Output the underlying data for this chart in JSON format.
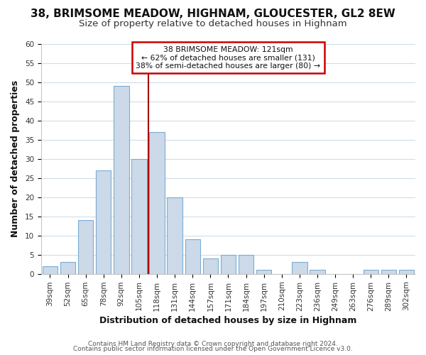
{
  "title": "38, BRIMSOME MEADOW, HIGHNAM, GLOUCESTER, GL2 8EW",
  "subtitle": "Size of property relative to detached houses in Highnam",
  "xlabel": "Distribution of detached houses by size in Highnam",
  "ylabel": "Number of detached properties",
  "bin_labels": [
    "39sqm",
    "52sqm",
    "65sqm",
    "78sqm",
    "92sqm",
    "105sqm",
    "118sqm",
    "131sqm",
    "144sqm",
    "157sqm",
    "171sqm",
    "184sqm",
    "197sqm",
    "210sqm",
    "223sqm",
    "236sqm",
    "249sqm",
    "263sqm",
    "276sqm",
    "289sqm",
    "302sqm"
  ],
  "bar_heights": [
    2,
    3,
    14,
    27,
    49,
    30,
    37,
    20,
    9,
    4,
    5,
    5,
    1,
    0,
    3,
    1,
    0,
    0,
    1,
    1,
    1
  ],
  "bar_color": "#ccd9e8",
  "bar_edge_color": "#7aadd4",
  "highlight_line_color": "#aa0000",
  "annotation_title": "38 BRIMSOME MEADOW: 121sqm",
  "annotation_line1": "← 62% of detached houses are smaller (131)",
  "annotation_line2": "38% of semi-detached houses are larger (80) →",
  "annotation_box_color": "#ffffff",
  "annotation_box_edge": "#cc0000",
  "ylim": [
    0,
    60
  ],
  "yticks": [
    0,
    5,
    10,
    15,
    20,
    25,
    30,
    35,
    40,
    45,
    50,
    55,
    60
  ],
  "footer1": "Contains HM Land Registry data © Crown copyright and database right 2024.",
  "footer2": "Contains public sector information licensed under the Open Government Licence v3.0.",
  "bg_color": "#ffffff",
  "plot_bg_color": "#ffffff",
  "grid_color": "#d0dde8",
  "title_fontsize": 11,
  "subtitle_fontsize": 9.5,
  "axis_label_fontsize": 9,
  "tick_fontsize": 7.5,
  "footer_fontsize": 6.5
}
